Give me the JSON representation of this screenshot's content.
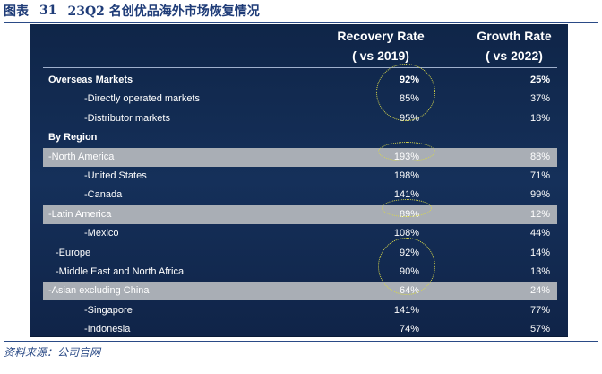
{
  "figure": {
    "label": "图表",
    "number": "31",
    "title": "23Q2 名创优品海外市场恢复情况"
  },
  "table": {
    "columns": [
      {
        "line1": "Recovery Rate",
        "line2": "( vs 2019)"
      },
      {
        "line1": "Growth Rate",
        "line2": "( vs 2022)"
      }
    ],
    "rows": [
      {
        "label": "Overseas Markets",
        "recovery": "92%",
        "growth": "25%",
        "indent": 0,
        "bold": true,
        "band": false
      },
      {
        "label": "-Directly operated markets",
        "recovery": "85%",
        "growth": "37%",
        "indent": 2,
        "bold": false,
        "band": false
      },
      {
        "label": "-Distributor markets",
        "recovery": "95%",
        "growth": "18%",
        "indent": 2,
        "bold": false,
        "band": false
      },
      {
        "label": "By Region",
        "recovery": "",
        "growth": "",
        "indent": 0,
        "bold": true,
        "band": false
      },
      {
        "label": "-North America",
        "recovery": "193%",
        "growth": "88%",
        "indent": 0,
        "bold": false,
        "band": true
      },
      {
        "label": "-United States",
        "recovery": "198%",
        "growth": "71%",
        "indent": 2,
        "bold": false,
        "band": false
      },
      {
        "label": "-Canada",
        "recovery": "141%",
        "growth": "99%",
        "indent": 2,
        "bold": false,
        "band": false
      },
      {
        "label": "-Latin America",
        "recovery": "89%",
        "growth": "12%",
        "indent": 0,
        "bold": false,
        "band": true
      },
      {
        "label": "-Mexico",
        "recovery": "108%",
        "growth": "44%",
        "indent": 2,
        "bold": false,
        "band": false
      },
      {
        "label": "-Europe",
        "recovery": "92%",
        "growth": "14%",
        "indent": 1,
        "bold": false,
        "band": false
      },
      {
        "label": "-Middle East and North Africa",
        "recovery": "90%",
        "growth": "13%",
        "indent": 1,
        "bold": false,
        "band": false
      },
      {
        "label": "-Asian excluding China",
        "recovery": "64%",
        "growth": "24%",
        "indent": 0,
        "bold": false,
        "band": true
      },
      {
        "label": "-Singapore",
        "recovery": "141%",
        "growth": "77%",
        "indent": 2,
        "bold": false,
        "band": false
      },
      {
        "label": "-Indonesia",
        "recovery": "74%",
        "growth": "57%",
        "indent": 2,
        "bold": false,
        "band": false
      }
    ]
  },
  "source": "资料来源：公司官网",
  "colors": {
    "panel": "#15305a",
    "band": "#a9aeb5",
    "highlight_circle": "#d8d84a",
    "title": "#1f3c78"
  }
}
